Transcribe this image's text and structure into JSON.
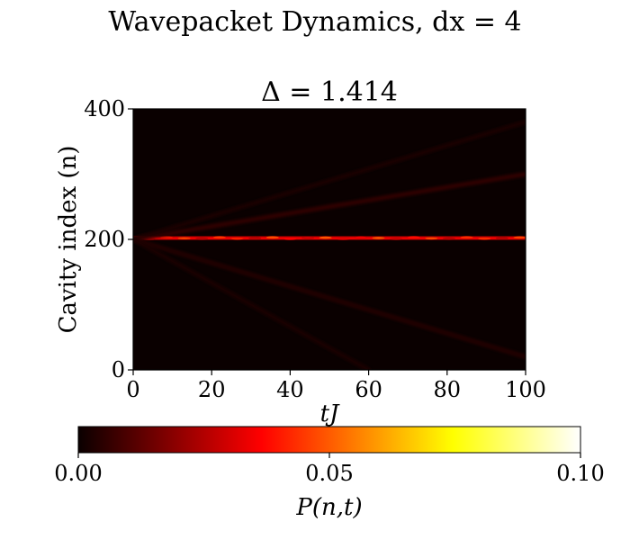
{
  "figure": {
    "suptitle": "Wavepacket Dynamics, dx = 4"
  },
  "chart_data": {
    "type": "heatmap",
    "title": "Δ = 1.414",
    "xlabel": "tJ",
    "ylabel": "Cavity index (n)",
    "xlim": [
      0,
      100
    ],
    "ylim": [
      0,
      400
    ],
    "xticks": [
      "0",
      "20",
      "40",
      "60",
      "80",
      "100"
    ],
    "yticks": [
      "0",
      "200",
      "400"
    ],
    "colormap": "hot",
    "colorbar": {
      "label": "P(n,t)",
      "range": [
        0,
        0.1
      ],
      "ticks": [
        "0.00",
        "0.05",
        "0.10"
      ],
      "orientation": "horizontal",
      "placement": "bottom"
    },
    "features": [
      {
        "kind": "localized_band",
        "n": 202,
        "t_start": 0,
        "t_end": 100,
        "peak_value": 0.05
      },
      {
        "kind": "ballistic_ray",
        "n_start": 200,
        "t_start": 0,
        "n_end": 300,
        "t_end": 100,
        "value": 0.006
      },
      {
        "kind": "ballistic_ray",
        "n_start": 200,
        "t_start": 0,
        "n_end": 380,
        "t_end": 100,
        "value": 0.003
      },
      {
        "kind": "ballistic_ray",
        "n_start": 200,
        "t_start": 0,
        "n_end": 20,
        "t_end": 100,
        "value": 0.004
      },
      {
        "kind": "ballistic_ray",
        "n_start": 200,
        "t_start": 0,
        "n_end": 0,
        "t_end": 60,
        "value": 0.003
      }
    ]
  }
}
